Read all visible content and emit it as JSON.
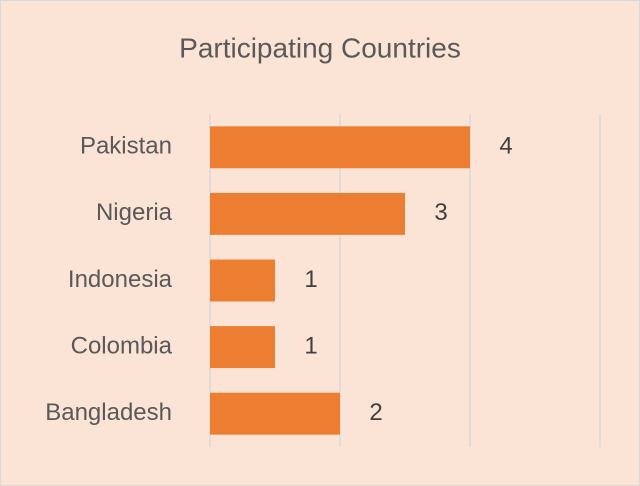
{
  "chart_data": {
    "type": "bar",
    "orientation": "horizontal",
    "title": "Participating Countries",
    "categories": [
      "Pakistan",
      "Nigeria",
      "Indonesia",
      "Colombia",
      "Bangladesh"
    ],
    "values": [
      4,
      3,
      1,
      1,
      2
    ],
    "color": "#ed7d31",
    "xlim": [
      0,
      6
    ],
    "xticks": [
      0,
      2,
      4,
      6
    ],
    "grid": true,
    "data_labels": true
  }
}
